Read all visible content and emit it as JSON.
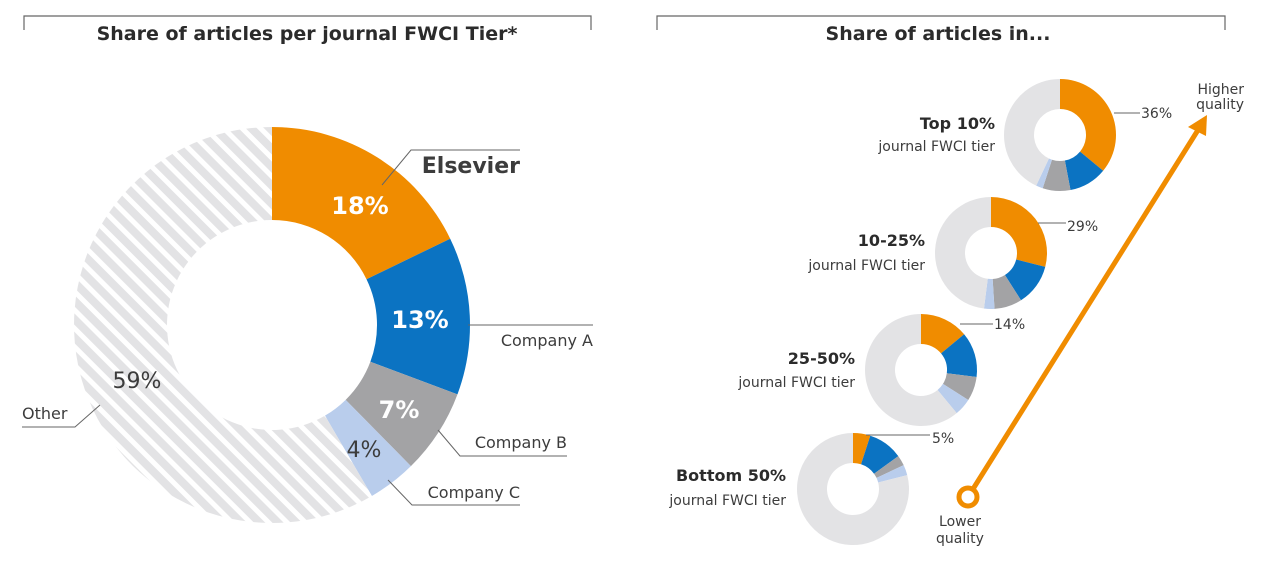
{
  "colors": {
    "elsevier": "#f08c00",
    "company_a": "#0b73c2",
    "company_b": "#a3a3a5",
    "company_c": "#b9cdec",
    "other": "#e3e3e5",
    "other_hatch": "#ffffff",
    "line": "#666666",
    "arrow": "#f08c00"
  },
  "chart_data": [
    {
      "type": "pie",
      "variant": "donut",
      "title": "Share of articles per journal FWCI Tier*",
      "slices": [
        {
          "key": "elsevier",
          "label": "Elsevier",
          "value": 18,
          "text": "18%"
        },
        {
          "key": "company_a",
          "label": "Company A",
          "value": 13,
          "text": "13%"
        },
        {
          "key": "company_b",
          "label": "Company B",
          "value": 7,
          "text": "7%"
        },
        {
          "key": "company_c",
          "label": "Company C",
          "value": 4,
          "text": "4%"
        },
        {
          "key": "other",
          "label": "Other",
          "value": 59,
          "text": "59%"
        }
      ]
    },
    {
      "type": "pie",
      "variant": "small-multiple donuts",
      "title": "Share of articles in...",
      "series_keys": [
        "elsevier",
        "company_a",
        "company_b",
        "company_c",
        "other"
      ],
      "tiers": [
        {
          "name": "Top 10%",
          "subtitle": "journal FWCI tier",
          "elsevier_label": "36%",
          "values": [
            36,
            11,
            8,
            2,
            43
          ]
        },
        {
          "name": "10-25%",
          "subtitle": "journal FWCI tier",
          "elsevier_label": "29%",
          "values": [
            29,
            12,
            8,
            3,
            48
          ]
        },
        {
          "name": "25-50%",
          "subtitle": "journal FWCI tier",
          "elsevier_label": "14%",
          "values": [
            14,
            13,
            7,
            5,
            61
          ]
        },
        {
          "name": "Bottom 50%",
          "subtitle": "journal FWCI tier",
          "elsevier_label": "5%",
          "values": [
            5,
            10,
            3,
            3,
            79
          ]
        }
      ],
      "arrow": {
        "start_label": "Lower quality",
        "end_label": "Higher quality"
      }
    }
  ],
  "text": {
    "higher_1": "Higher",
    "higher_2": "quality",
    "lower_1": "Lower",
    "lower_2": "quality"
  }
}
